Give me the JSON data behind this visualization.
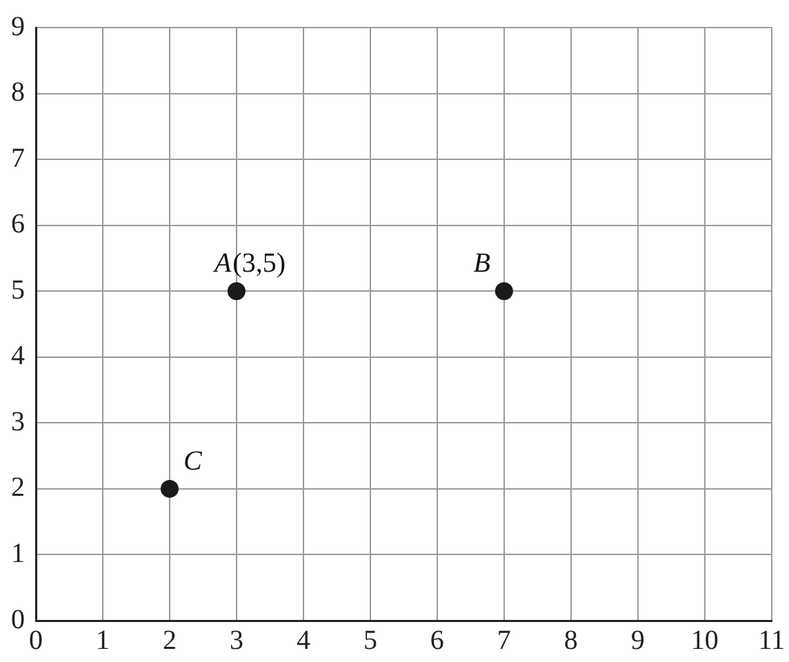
{
  "chart_data": {
    "type": "scatter",
    "series": [
      {
        "color": "#1a1a1a",
        "x": [
          3,
          7,
          2
        ],
        "values": [
          5,
          5,
          2
        ]
      }
    ],
    "xlim": [
      0,
      11
    ],
    "xticks": [
      0,
      1,
      2,
      3,
      4,
      5,
      6,
      7,
      8,
      9,
      10,
      11
    ],
    "ylim": [
      0,
      9
    ],
    "yticks": [
      0,
      1,
      2,
      3,
      4,
      5,
      6,
      7,
      8,
      9
    ],
    "grid": true,
    "marker": "circle",
    "legend": false,
    "annotations": [
      {
        "text": "A(3,5)",
        "x": 3,
        "y": 5
      },
      {
        "text": "B",
        "x": 7,
        "y": 5
      },
      {
        "text": "C",
        "x": 2,
        "y": 2
      }
    ]
  }
}
